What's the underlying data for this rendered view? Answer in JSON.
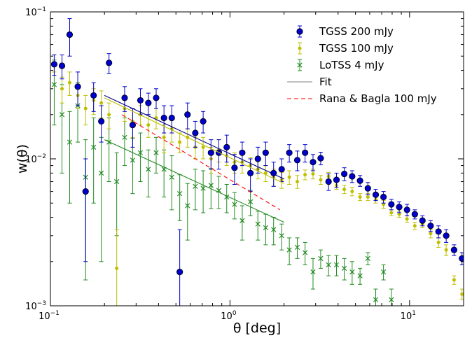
{
  "chart_data": {
    "type": "scatter",
    "xlabel": "θ [deg]",
    "ylabel": "w(θ)",
    "xscale": "log",
    "yscale": "log",
    "xlim": [
      0.1,
      20
    ],
    "ylim": [
      0.001,
      0.1
    ],
    "x_ticks": [
      {
        "value": 0.1,
        "base": "10",
        "exp": "−1"
      },
      {
        "value": 1,
        "base": "10",
        "exp": "0"
      },
      {
        "value": 10,
        "base": "10",
        "exp": "1"
      }
    ],
    "y_ticks": [
      {
        "value": 0.001,
        "base": "10",
        "exp": "−3"
      },
      {
        "value": 0.01,
        "base": "10",
        "exp": "−2"
      },
      {
        "value": 0.1,
        "base": "10",
        "exp": "−1"
      }
    ],
    "legend_position": "top-right",
    "series": [
      {
        "name": "TGSS 200 mJy",
        "marker": "circle",
        "color": "#0000cc",
        "x": [
          0.105,
          0.116,
          0.128,
          0.142,
          0.157,
          0.174,
          0.192,
          0.212,
          0.234,
          0.259,
          0.287,
          0.317,
          0.351,
          0.388,
          0.429,
          0.474,
          0.525,
          0.58,
          0.641,
          0.709,
          0.784,
          0.867,
          0.959,
          1.06,
          1.17,
          1.3,
          1.43,
          1.58,
          1.75,
          1.94,
          2.14,
          2.37,
          2.62,
          2.9,
          3.2,
          3.54,
          3.92,
          4.33,
          4.79,
          5.3,
          5.86,
          6.48,
          7.16,
          7.92,
          8.76,
          9.68,
          10.7,
          11.8,
          13.1,
          14.5,
          16.0,
          17.7,
          19.6
        ],
        "y": [
          0.044,
          0.043,
          0.07,
          0.031,
          0.006,
          0.027,
          0.018,
          0.045,
          null,
          0.026,
          0.017,
          0.025,
          0.024,
          0.026,
          0.019,
          0.019,
          0.0017,
          0.02,
          0.015,
          0.018,
          0.011,
          0.011,
          0.012,
          0.0087,
          0.011,
          0.008,
          0.01,
          0.011,
          0.008,
          0.0085,
          0.011,
          0.0098,
          0.011,
          0.0095,
          0.0101,
          0.007,
          0.0072,
          0.0079,
          0.0076,
          0.0071,
          0.0063,
          0.0057,
          0.0055,
          0.0049,
          0.0047,
          0.0045,
          0.0042,
          0.0038,
          0.0035,
          0.0032,
          0.003,
          0.0024,
          0.0021
        ],
        "err": [
          0.007,
          0.008,
          0.02,
          0.008,
          0.004,
          0.006,
          0.005,
          0.007,
          null,
          0.005,
          0.005,
          0.005,
          0.004,
          0.004,
          0.004,
          0.004,
          0.0016,
          0.004,
          0.003,
          0.003,
          0.0025,
          0.0025,
          0.0025,
          0.002,
          0.002,
          0.002,
          0.002,
          0.002,
          0.0015,
          0.0015,
          0.0015,
          0.0015,
          0.0015,
          0.0012,
          0.001,
          0.0009,
          0.0008,
          0.0008,
          0.0007,
          0.0006,
          0.0006,
          0.0005,
          0.0005,
          0.0004,
          0.0004,
          0.0004,
          0.0003,
          0.0003,
          0.0003,
          0.0003,
          0.0003,
          0.0002,
          0.0002
        ]
      },
      {
        "name": "TGSS 100 mJy",
        "marker": "dot",
        "color": "#bfbf00",
        "x": [
          0.105,
          0.116,
          0.128,
          0.142,
          0.157,
          0.174,
          0.192,
          0.212,
          0.234,
          0.259,
          0.287,
          0.317,
          0.351,
          0.388,
          0.429,
          0.474,
          0.525,
          0.58,
          0.641,
          0.709,
          0.784,
          0.867,
          0.959,
          1.06,
          1.17,
          1.3,
          1.43,
          1.58,
          1.75,
          1.94,
          2.14,
          2.37,
          2.62,
          2.9,
          3.2,
          3.54,
          3.92,
          4.33,
          4.79,
          5.3,
          5.86,
          6.48,
          7.16,
          7.92,
          8.76,
          9.68,
          10.7,
          11.8,
          13.1,
          14.5,
          16.0,
          17.7,
          19.6
        ],
        "y": [
          0.045,
          0.03,
          0.033,
          0.027,
          0.022,
          0.025,
          0.024,
          0.02,
          0.0018,
          0.022,
          0.018,
          0.02,
          0.017,
          0.019,
          0.014,
          0.016,
          0.013,
          0.014,
          0.012,
          0.012,
          0.01,
          0.0115,
          0.0105,
          0.0095,
          0.0095,
          0.009,
          0.0085,
          0.008,
          0.0075,
          0.0072,
          0.0075,
          0.007,
          0.0078,
          0.0079,
          0.0072,
          0.0076,
          0.0066,
          0.0062,
          0.006,
          0.0055,
          0.0055,
          0.0053,
          0.0049,
          0.0043,
          0.0042,
          0.0039,
          0.0035,
          0.0036,
          0.0031,
          0.0027,
          0.0024,
          0.0015,
          0.0012
        ],
        "err": [
          0.006,
          0.006,
          0.006,
          0.005,
          0.005,
          0.005,
          0.005,
          0.004,
          0.0015,
          0.004,
          0.004,
          0.003,
          0.003,
          0.003,
          0.003,
          0.003,
          0.002,
          0.002,
          0.002,
          0.002,
          0.002,
          0.002,
          0.0015,
          0.0015,
          0.0015,
          0.0012,
          0.0012,
          0.001,
          0.001,
          0.0009,
          0.0008,
          0.0007,
          0.0006,
          0.0006,
          0.0005,
          0.0005,
          0.0004,
          0.0004,
          0.0004,
          0.0003,
          0.0003,
          0.0003,
          0.0003,
          0.0002,
          0.0002,
          0.0002,
          0.0002,
          0.0002,
          0.0002,
          0.0002,
          0.0002,
          0.0001,
          0.0001
        ]
      },
      {
        "name": "LoTSS 4 mJy",
        "marker": "x",
        "color": "#228b22",
        "x": [
          0.105,
          0.116,
          0.128,
          0.142,
          0.157,
          0.174,
          0.192,
          0.212,
          0.234,
          0.259,
          0.287,
          0.317,
          0.351,
          0.388,
          0.429,
          0.474,
          0.525,
          0.58,
          0.641,
          0.709,
          0.784,
          0.867,
          0.959,
          1.06,
          1.17,
          1.3,
          1.43,
          1.58,
          1.75,
          1.94,
          2.14,
          2.37,
          2.62,
          2.9,
          3.2,
          3.54,
          3.92,
          4.33,
          4.79,
          5.3,
          5.86,
          6.48,
          7.16,
          7.92
        ],
        "y": [
          0.032,
          0.02,
          0.013,
          0.023,
          0.0075,
          0.012,
          0.008,
          0.013,
          0.007,
          0.014,
          0.0098,
          0.011,
          0.0085,
          0.011,
          0.0085,
          0.0075,
          0.0058,
          0.0048,
          0.0065,
          0.0063,
          0.0066,
          0.0061,
          0.0055,
          0.0049,
          0.0038,
          0.0051,
          0.0036,
          0.0034,
          0.0033,
          0.003,
          0.0024,
          0.0025,
          0.0023,
          0.0017,
          0.0021,
          0.0019,
          0.0019,
          0.0018,
          0.0017,
          0.0016,
          0.0021,
          0.0011,
          0.0017,
          0.0011
        ],
        "err": [
          0.015,
          0.012,
          0.008,
          0.01,
          0.006,
          0.007,
          0.006,
          0.006,
          0.004,
          0.005,
          0.004,
          0.004,
          0.003,
          0.003,
          0.003,
          0.003,
          0.002,
          0.002,
          0.002,
          0.002,
          0.002,
          0.0015,
          0.0012,
          0.001,
          0.001,
          0.001,
          0.0008,
          0.0008,
          0.0007,
          0.0006,
          0.0005,
          0.0004,
          0.0004,
          0.0004,
          0.0003,
          0.0003,
          0.0003,
          0.0003,
          0.0003,
          0.0002,
          0.0002,
          0.0002,
          0.0002,
          0.0002
        ]
      },
      {
        "name": "Fit",
        "type": "line",
        "color": "#808080",
        "x": [
          0.2,
          2.0
        ],
        "y": [
          0.026,
          0.0068
        ]
      },
      {
        "name": "Rana & Bagla 100 mJy",
        "type": "line",
        "dashed": true,
        "color": "#ff0000",
        "x": [
          0.25,
          1.9
        ],
        "y": [
          0.02,
          0.0045
        ]
      }
    ],
    "fit_lines": [
      {
        "color": "#000080",
        "x": [
          0.2,
          2.0
        ],
        "y": [
          0.027,
          0.0073
        ]
      },
      {
        "color": "#bfbf00",
        "x": [
          0.2,
          2.0
        ],
        "y": [
          0.026,
          0.0068
        ]
      },
      {
        "color": "#228b22",
        "x": [
          0.2,
          2.0
        ],
        "y": [
          0.0135,
          0.0037
        ]
      }
    ]
  }
}
